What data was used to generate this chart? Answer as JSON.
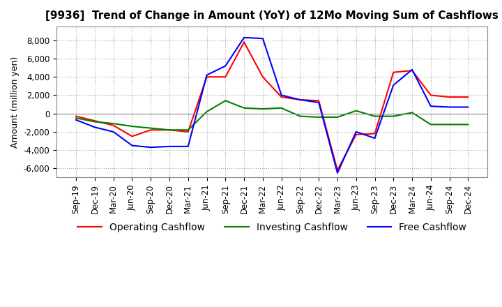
{
  "title": "[9936]  Trend of Change in Amount (YoY) of 12Mo Moving Sum of Cashflows",
  "ylabel": "Amount (million yen)",
  "ylim": [
    -7000,
    9500
  ],
  "yticks": [
    -6000,
    -4000,
    -2000,
    0,
    2000,
    4000,
    6000,
    8000
  ],
  "x_labels": [
    "Sep-19",
    "Dec-19",
    "Mar-20",
    "Jun-20",
    "Sep-20",
    "Dec-20",
    "Mar-21",
    "Jun-21",
    "Sep-21",
    "Dec-21",
    "Mar-22",
    "Jun-22",
    "Sep-22",
    "Dec-22",
    "Mar-23",
    "Jun-23",
    "Sep-23",
    "Dec-23",
    "Mar-24",
    "Jun-24",
    "Sep-24",
    "Dec-24"
  ],
  "operating": [
    -300,
    -800,
    -1300,
    -2500,
    -1800,
    -1800,
    -2000,
    4000,
    4000,
    7800,
    4000,
    1800,
    1500,
    1400,
    -6200,
    -2300,
    -2200,
    4500,
    4700,
    2000,
    1800,
    1800
  ],
  "investing": [
    -500,
    -900,
    -1100,
    -1400,
    -1600,
    -1800,
    -1800,
    200,
    1400,
    600,
    500,
    600,
    -300,
    -400,
    -400,
    300,
    -300,
    -300,
    100,
    -1200,
    -1200,
    -1200
  ],
  "free": [
    -700,
    -1500,
    -2000,
    -3500,
    -3700,
    -3600,
    -3600,
    4200,
    5200,
    8300,
    8200,
    2000,
    1500,
    1200,
    -6500,
    -2000,
    -2700,
    3100,
    4800,
    800,
    700,
    700
  ],
  "op_color": "#ff0000",
  "inv_color": "#008000",
  "free_color": "#0000ff",
  "bg_color": "#ffffff",
  "grid_color": "#aaaaaa",
  "title_fontsize": 11,
  "legend_fontsize": 10,
  "tick_fontsize": 8.5
}
